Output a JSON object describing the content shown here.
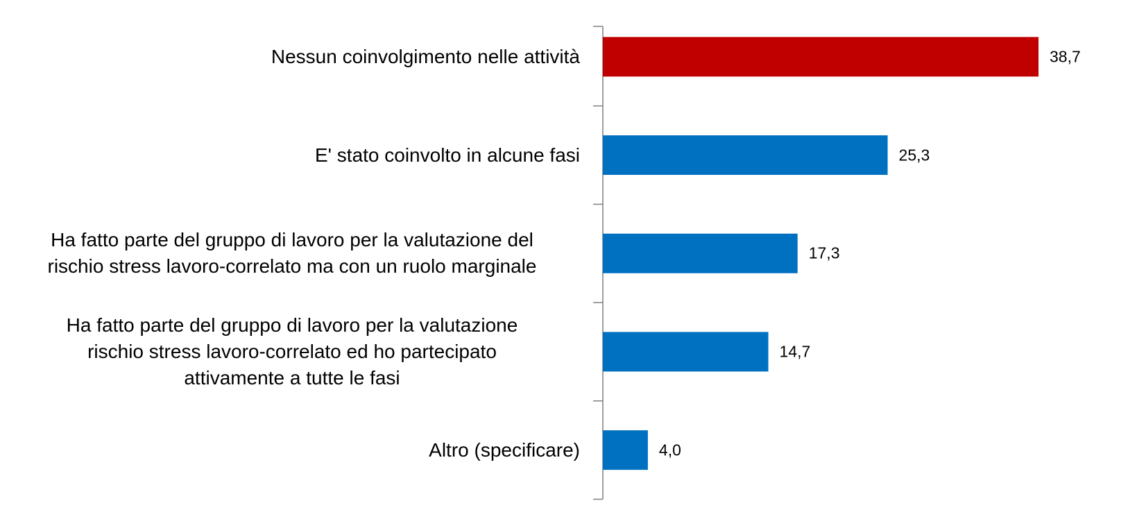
{
  "chart_data": {
    "type": "bar",
    "orientation": "horizontal",
    "categories": [
      "Nessun coinvolgimento nelle attività",
      "E' stato coinvolto in alcune fasi",
      "Ha fatto parte del gruppo di lavoro per la valutazione del\nrischio stress lavoro-correlato ma con un ruolo marginale",
      "Ha fatto parte del gruppo di lavoro per la valutazione\nrischio stress lavoro-correlato ed ho partecipato\nattivamente a tutte le fasi",
      "Altro (specificare)"
    ],
    "values": [
      38.7,
      25.3,
      17.3,
      14.7,
      4.0
    ],
    "value_labels": [
      "38,7",
      "25,3",
      "17,3",
      "14,7",
      "4,0"
    ],
    "colors": [
      "#c00000",
      "#0070c0",
      "#0070c0",
      "#0070c0",
      "#0070c0"
    ]
  }
}
